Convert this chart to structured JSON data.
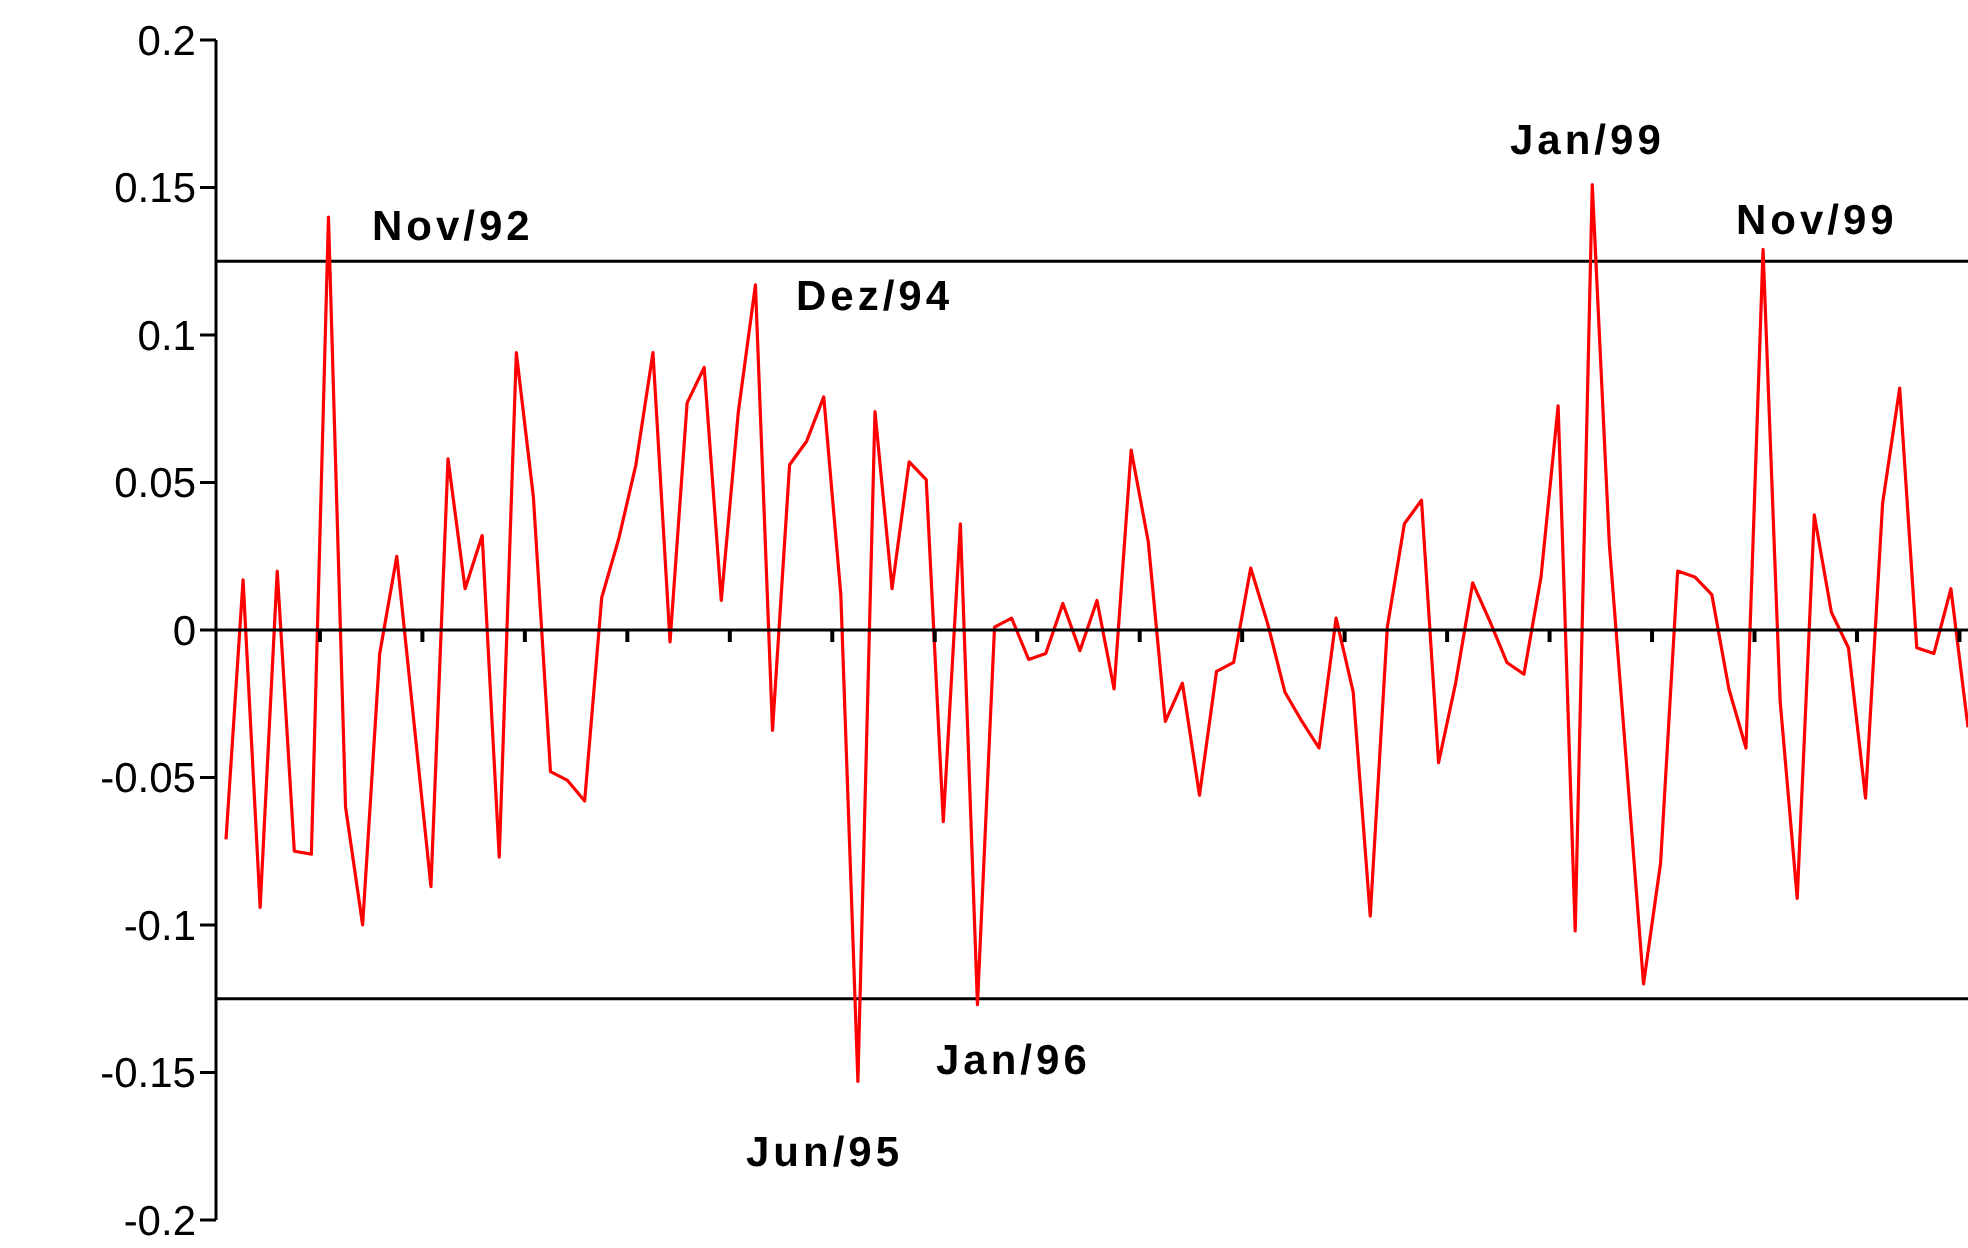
{
  "chart_data": {
    "type": "line",
    "categories": [
      null,
      null,
      null,
      null,
      null,
      null,
      null,
      null,
      null,
      null,
      null,
      null,
      null,
      null,
      null,
      null,
      null,
      null,
      null,
      null,
      null,
      null,
      null,
      null,
      null,
      null,
      null,
      null,
      null,
      null,
      null,
      null,
      null,
      null,
      null,
      null,
      null,
      null,
      null,
      null,
      null,
      null,
      null,
      null,
      null,
      null,
      null,
      null,
      null,
      null,
      null,
      null,
      null,
      null,
      null,
      null,
      null,
      null,
      null,
      null,
      null,
      null,
      null,
      null,
      null,
      null,
      null,
      null,
      null,
      null,
      null,
      null,
      null,
      null,
      null,
      null,
      null,
      null,
      null,
      null,
      null,
      null,
      null,
      null,
      null,
      null,
      null,
      null,
      null,
      null,
      null,
      null,
      null,
      null,
      null,
      null,
      null,
      null,
      null,
      null,
      null,
      null,
      null
    ],
    "series": [
      {
        "color": "#ff0000",
        "values": [
          -0.071,
          0.017,
          -0.094,
          0.02,
          -0.075,
          -0.076,
          0.14,
          -0.06,
          -0.1,
          -0.008,
          0.025,
          -0.031,
          -0.087,
          0.058,
          0.014,
          0.032,
          -0.077,
          0.094,
          0.045,
          -0.048,
          -0.051,
          -0.058,
          0.011,
          0.031,
          0.056,
          0.094,
          -0.004,
          0.077,
          0.089,
          0.01,
          0.074,
          0.117,
          -0.034,
          0.056,
          0.064,
          0.079,
          0.012,
          -0.153,
          0.074,
          0.014,
          0.057,
          0.051,
          -0.065,
          0.036,
          -0.127,
          0.001,
          0.004,
          -0.01,
          -0.008,
          0.009,
          -0.007,
          0.01,
          -0.02,
          0.061,
          0.03,
          -0.031,
          -0.018,
          -0.056,
          -0.014,
          -0.011,
          0.021,
          0.002,
          -0.021,
          -0.031,
          -0.04,
          0.004,
          -0.021,
          -0.097,
          0.001,
          0.036,
          0.044,
          -0.045,
          -0.018,
          0.016,
          0.003,
          -0.011,
          -0.015,
          0.018,
          0.076,
          -0.102,
          0.151,
          0.029,
          -0.045,
          -0.12,
          -0.079,
          0.02,
          0.018,
          0.012,
          -0.02,
          -0.04,
          0.129,
          -0.024,
          -0.091,
          0.039,
          0.006,
          -0.006,
          -0.057,
          0.043,
          0.082,
          -0.006,
          -0.008,
          0.014,
          -0.033
        ]
      }
    ],
    "ylim": [
      -0.2,
      0.2
    ],
    "yticks": [
      -0.2,
      -0.15,
      -0.1,
      -0.05,
      0,
      0.05,
      0.1,
      0.15,
      0.2
    ],
    "tick_labels": "y",
    "legend": false,
    "line_style": "solid",
    "ref_lines": [
      {
        "axis": "y",
        "value": 0.125,
        "color": "#000000"
      },
      {
        "axis": "y",
        "value": -0.125,
        "color": "#000000"
      }
    ],
    "annotations": [
      "Nov/92",
      "Dez/94",
      "Jun/95",
      "Jan/96",
      "Jan/99",
      "Nov/99"
    ]
  }
}
